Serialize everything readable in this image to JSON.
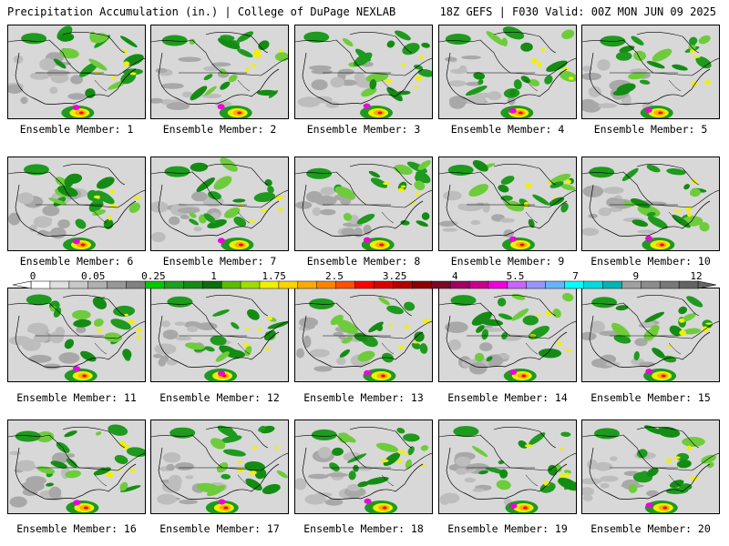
{
  "header": {
    "title": "Precipitation Accumulation (in.) | College of DuPage NEXLAB",
    "run_info": "18Z GEFS | F030 Valid: 00Z MON JUN 09 2025"
  },
  "panels": [
    {
      "label": "Ensemble Member: 1"
    },
    {
      "label": "Ensemble Member: 2"
    },
    {
      "label": "Ensemble Member: 3"
    },
    {
      "label": "Ensemble Member: 4"
    },
    {
      "label": "Ensemble Member: 5"
    },
    {
      "label": "Ensemble Member: 6"
    },
    {
      "label": "Ensemble Member: 7"
    },
    {
      "label": "Ensemble Member: 8"
    },
    {
      "label": "Ensemble Member: 9"
    },
    {
      "label": "Ensemble Member: 10"
    },
    {
      "label": "Ensemble Member: 11"
    },
    {
      "label": "Ensemble Member: 12"
    },
    {
      "label": "Ensemble Member: 13"
    },
    {
      "label": "Ensemble Member: 14"
    },
    {
      "label": "Ensemble Member: 15"
    },
    {
      "label": "Ensemble Member: 16"
    },
    {
      "label": "Ensemble Member: 17"
    },
    {
      "label": "Ensemble Member: 18"
    },
    {
      "label": "Ensemble Member: 19"
    },
    {
      "label": "Ensemble Member: 20"
    }
  ],
  "legend": {
    "ticks": [
      "0",
      "0.05",
      "0.25",
      "1",
      "1.75",
      "2.5",
      "3.25",
      "4",
      "5.5",
      "7",
      "9",
      "12"
    ],
    "colors": [
      "#ffffff",
      "#e0e0e0",
      "#c8c8c8",
      "#b0b0b0",
      "#989898",
      "#808080",
      "#00c800",
      "#1ea01e",
      "#148c14",
      "#0a6e0a",
      "#5abe00",
      "#a0dc00",
      "#f0f000",
      "#ffd200",
      "#ffaa00",
      "#ff8200",
      "#ff5000",
      "#ff0000",
      "#dc0000",
      "#b40000",
      "#8c0000",
      "#780a28",
      "#a00064",
      "#c8008c",
      "#f000dc",
      "#c864ff",
      "#9696ff",
      "#64b4ff",
      "#00ffff",
      "#00dcdc",
      "#00b4b4",
      "#a0a0a0",
      "#8c8c8c",
      "#787878",
      "#646464"
    ]
  },
  "palette": {
    "land_gray": "#d8d8d8",
    "light_gray": "#bdbdbd",
    "dark_gray": "#8a8a8a",
    "green": "#1e9a1e",
    "light_green": "#6ecc3c",
    "yellow": "#f0f000",
    "orange": "#ffaa00",
    "red": "#ff0000",
    "magenta": "#f000dc"
  }
}
